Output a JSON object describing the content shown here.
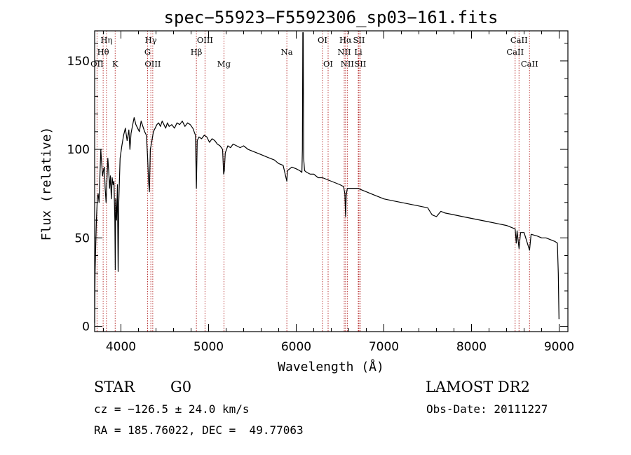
{
  "chart_data": {
    "type": "line",
    "title": "spec−55923−F5592306_sp03−161.fits",
    "xlabel": "Wavelength (Å)",
    "ylabel": "Flux (relative)",
    "xlim": [
      3700,
      9100
    ],
    "ylim": [
      -3,
      167
    ],
    "xticks": [
      4000,
      5000,
      6000,
      7000,
      8000,
      9000
    ],
    "yticks": [
      0,
      50,
      100,
      150
    ],
    "grid": false,
    "series": [
      {
        "points": [
          [
            3700,
            2
          ],
          [
            3705,
            30
          ],
          [
            3712,
            45
          ],
          [
            3720,
            60
          ],
          [
            3730,
            72
          ],
          [
            3740,
            75
          ],
          [
            3750,
            70
          ],
          [
            3760,
            85
          ],
          [
            3770,
            100
          ],
          [
            3780,
            92
          ],
          [
            3790,
            85
          ],
          [
            3800,
            88
          ],
          [
            3810,
            90
          ],
          [
            3820,
            78
          ],
          [
            3830,
            70
          ],
          [
            3840,
            82
          ],
          [
            3850,
            95
          ],
          [
            3860,
            88
          ],
          [
            3870,
            78
          ],
          [
            3880,
            85
          ],
          [
            3890,
            72
          ],
          [
            3900,
            84
          ],
          [
            3910,
            80
          ],
          [
            3920,
            82
          ],
          [
            3930,
            60
          ],
          [
            3935,
            32
          ],
          [
            3940,
            72
          ],
          [
            3950,
            60
          ],
          [
            3960,
            80
          ],
          [
            3968,
            31
          ],
          [
            3975,
            70
          ],
          [
            3990,
            95
          ],
          [
            4010,
            102
          ],
          [
            4030,
            108
          ],
          [
            4050,
            112
          ],
          [
            4070,
            105
          ],
          [
            4090,
            111
          ],
          [
            4102,
            100
          ],
          [
            4115,
            109
          ],
          [
            4130,
            113
          ],
          [
            4150,
            118
          ],
          [
            4170,
            114
          ],
          [
            4190,
            112
          ],
          [
            4210,
            110
          ],
          [
            4230,
            116
          ],
          [
            4250,
            113
          ],
          [
            4270,
            110
          ],
          [
            4290,
            108
          ],
          [
            4305,
            95
          ],
          [
            4315,
            82
          ],
          [
            4325,
            76
          ],
          [
            4335,
            100
          ],
          [
            4350,
            104
          ],
          [
            4370,
            110
          ],
          [
            4390,
            112
          ],
          [
            4410,
            114
          ],
          [
            4430,
            115
          ],
          [
            4450,
            113
          ],
          [
            4470,
            116
          ],
          [
            4490,
            114
          ],
          [
            4510,
            112
          ],
          [
            4530,
            115
          ],
          [
            4550,
            113
          ],
          [
            4580,
            114
          ],
          [
            4610,
            112
          ],
          [
            4640,
            115
          ],
          [
            4670,
            114
          ],
          [
            4700,
            116
          ],
          [
            4730,
            113
          ],
          [
            4760,
            115
          ],
          [
            4790,
            114
          ],
          [
            4820,
            112
          ],
          [
            4850,
            108
          ],
          [
            4861,
            78
          ],
          [
            4870,
            105
          ],
          [
            4890,
            107
          ],
          [
            4920,
            106
          ],
          [
            4950,
            108
          ],
          [
            4980,
            107
          ],
          [
            5010,
            104
          ],
          [
            5040,
            106
          ],
          [
            5070,
            105
          ],
          [
            5100,
            103
          ],
          [
            5130,
            102
          ],
          [
            5160,
            100
          ],
          [
            5172,
            86
          ],
          [
            5180,
            88
          ],
          [
            5190,
            98
          ],
          [
            5220,
            102
          ],
          [
            5250,
            101
          ],
          [
            5280,
            103
          ],
          [
            5320,
            102
          ],
          [
            5360,
            101
          ],
          [
            5400,
            102
          ],
          [
            5450,
            100
          ],
          [
            5500,
            99
          ],
          [
            5550,
            98
          ],
          [
            5600,
            97
          ],
          [
            5650,
            96
          ],
          [
            5700,
            95
          ],
          [
            5750,
            94
          ],
          [
            5800,
            92
          ],
          [
            5850,
            91
          ],
          [
            5893,
            82
          ],
          [
            5900,
            88
          ],
          [
            5950,
            90
          ],
          [
            6000,
            89
          ],
          [
            6040,
            88
          ],
          [
            6065,
            87
          ],
          [
            6070,
            100
          ],
          [
            6075,
            166
          ],
          [
            6080,
            166
          ],
          [
            6085,
            95
          ],
          [
            6095,
            88
          ],
          [
            6120,
            87
          ],
          [
            6160,
            86
          ],
          [
            6200,
            86
          ],
          [
            6250,
            84
          ],
          [
            6300,
            84
          ],
          [
            6350,
            83
          ],
          [
            6400,
            82
          ],
          [
            6450,
            81
          ],
          [
            6500,
            80
          ],
          [
            6540,
            79
          ],
          [
            6555,
            75
          ],
          [
            6563,
            62
          ],
          [
            6570,
            74
          ],
          [
            6583,
            78
          ],
          [
            6600,
            78
          ],
          [
            6650,
            78
          ],
          [
            6700,
            78
          ],
          [
            6750,
            77
          ],
          [
            6800,
            76
          ],
          [
            6850,
            75
          ],
          [
            6900,
            74
          ],
          [
            6950,
            73
          ],
          [
            7000,
            72
          ],
          [
            7100,
            71
          ],
          [
            7200,
            70
          ],
          [
            7300,
            69
          ],
          [
            7400,
            68
          ],
          [
            7500,
            67
          ],
          [
            7550,
            63
          ],
          [
            7600,
            62
          ],
          [
            7650,
            65
          ],
          [
            7700,
            64
          ],
          [
            7800,
            63
          ],
          [
            7900,
            62
          ],
          [
            8000,
            61
          ],
          [
            8100,
            60
          ],
          [
            8200,
            59
          ],
          [
            8300,
            58
          ],
          [
            8400,
            57
          ],
          [
            8498,
            55
          ],
          [
            8510,
            47
          ],
          [
            8520,
            54
          ],
          [
            8542,
            44
          ],
          [
            8560,
            53
          ],
          [
            8600,
            53
          ],
          [
            8662,
            43
          ],
          [
            8680,
            52
          ],
          [
            8750,
            51
          ],
          [
            8800,
            50
          ],
          [
            8850,
            50
          ],
          [
            8900,
            49
          ],
          [
            8950,
            48
          ],
          [
            8980,
            47
          ],
          [
            8990,
            30
          ],
          [
            8998,
            4
          ]
        ]
      }
    ],
    "line_labels": [
      {
        "text": "Hη",
        "wave": 3835,
        "row": 0
      },
      {
        "text": "Hθ",
        "wave": 3797,
        "row": 1
      },
      {
        "text": "OII",
        "wave": 3727,
        "row": 2
      },
      {
        "text": "K",
        "wave": 3934,
        "row": 2
      },
      {
        "text": "Hγ",
        "wave": 4341,
        "row": 0
      },
      {
        "text": "G",
        "wave": 4304,
        "row": 1
      },
      {
        "text": "OIII",
        "wave": 4363,
        "row": 2
      },
      {
        "text": "OIII",
        "wave": 4959,
        "row": 0
      },
      {
        "text": "Hβ",
        "wave": 4861,
        "row": 1
      },
      {
        "text": "Mg",
        "wave": 5175,
        "row": 2
      },
      {
        "text": "Na",
        "wave": 5893,
        "row": 1
      },
      {
        "text": "OI",
        "wave": 6300,
        "row": 0
      },
      {
        "text": "OI",
        "wave": 6364,
        "row": 2
      },
      {
        "text": "Hα",
        "wave": 6563,
        "row": 0
      },
      {
        "text": "SII",
        "wave": 6716,
        "row": 0
      },
      {
        "text": "NII",
        "wave": 6548,
        "row": 1
      },
      {
        "text": "Li",
        "wave": 6708,
        "row": 1
      },
      {
        "text": "NII",
        "wave": 6583,
        "row": 2
      },
      {
        "text": "SII",
        "wave": 6731,
        "row": 2
      },
      {
        "text": "CaII",
        "wave": 8542,
        "row": 0
      },
      {
        "text": "CaII",
        "wave": 8498,
        "row": 1
      },
      {
        "text": "CaII",
        "wave": 8662,
        "row": 2
      }
    ],
    "line_marker_waves": [
      3727,
      3797,
      3835,
      3934,
      4304,
      4341,
      4363,
      4861,
      4959,
      5175,
      5893,
      6300,
      6364,
      6548,
      6563,
      6583,
      6708,
      6716,
      6731,
      8498,
      8542,
      8662
    ],
    "line_marker_color": "#b22222",
    "spectrum_color": "#000000"
  },
  "info": {
    "object_class": "STAR",
    "subclass": "G0",
    "survey": "LAMOST DR2",
    "velocity": "cz = −126.5 ± 24.0 km/s",
    "obs_date": "Obs-Date: 20111227",
    "coordinates": "RA = 185.76022, DEC =  49.77063"
  }
}
